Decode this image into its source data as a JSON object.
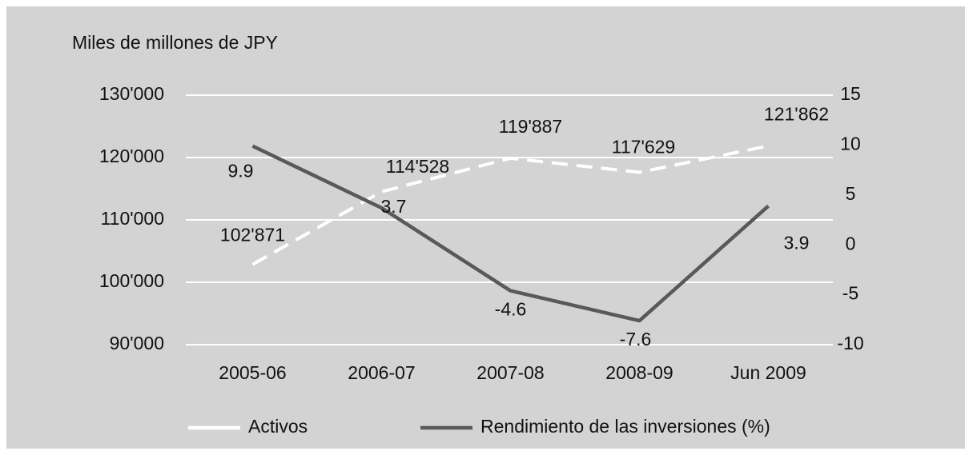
{
  "chart_data": {
    "type": "line",
    "y_axis_label": "Miles de millones de JPY",
    "categories": [
      "2005-06",
      "2006-07",
      "2007-08",
      "2008-09",
      "Jun 2009"
    ],
    "series": [
      {
        "name": "Activos",
        "color": "#ffffff",
        "dashed": true,
        "values": [
          102871,
          114528,
          119887,
          117629,
          121862
        ],
        "value_labels": [
          "102'871",
          "114'528",
          "119'887",
          "117'629",
          "121'862"
        ]
      },
      {
        "name": "Rendimiento de las inversiones (%)",
        "color": "#595959",
        "axis": "y2",
        "values": [
          9.9,
          3.7,
          -4.6,
          -7.6,
          3.9
        ]
      }
    ],
    "ylim": [
      90000,
      130000
    ],
    "yticks": [
      {
        "value": 90000,
        "label": "90'000"
      },
      {
        "value": 100000,
        "label": "100'000"
      },
      {
        "value": 110000,
        "label": "110'000"
      },
      {
        "value": 120000,
        "label": "120'000"
      },
      {
        "value": 130000,
        "label": "130'000"
      }
    ],
    "y2lim": [
      -10,
      15
    ],
    "y2ticks": [
      -10,
      -5,
      0,
      5,
      10,
      15
    ],
    "grid": true,
    "legend": "bottom"
  }
}
